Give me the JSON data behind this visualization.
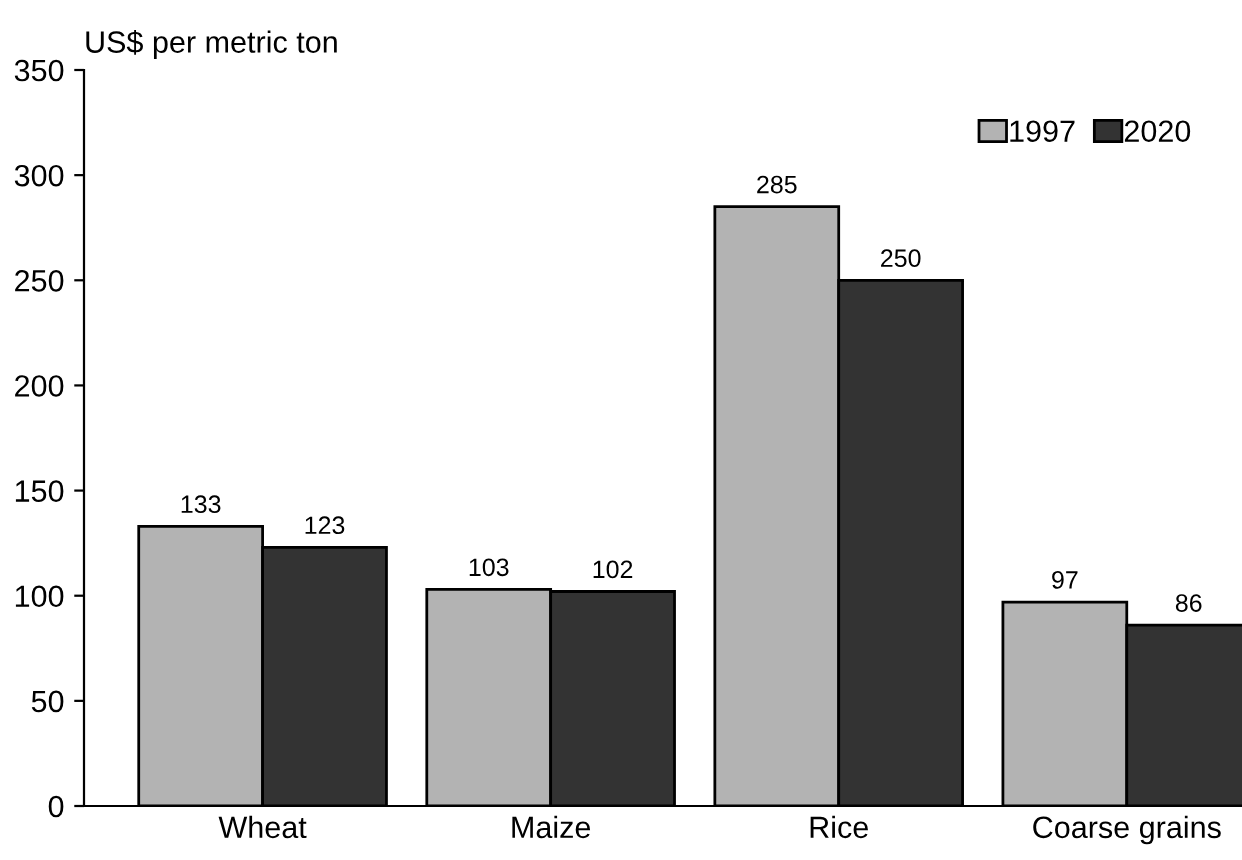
{
  "chart_data": {
    "type": "bar",
    "ylabel": "US$ per metric ton",
    "categories": [
      "Wheat",
      "Maize",
      "Rice",
      "Coarse grains"
    ],
    "series": [
      {
        "name": "1997",
        "color": "#b3b3b3",
        "values": [
          133,
          103,
          285,
          97
        ]
      },
      {
        "name": "2020",
        "color": "#333333",
        "values": [
          123,
          102,
          250,
          86
        ]
      }
    ],
    "ylim": [
      0,
      350
    ],
    "yticks": [
      0,
      50,
      100,
      150,
      200,
      250,
      300,
      350
    ],
    "data_labels": true,
    "grid": false,
    "legend": "top right"
  }
}
